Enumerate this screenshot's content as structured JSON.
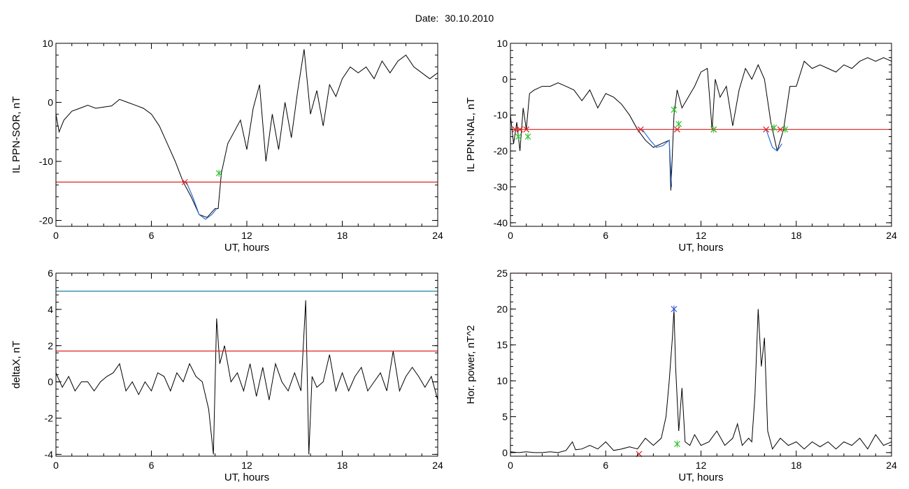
{
  "header": {
    "date_label": "Date:",
    "date_value": "30.10.2010"
  },
  "colors": {
    "trace": "#000000",
    "threshold": "#e02020",
    "limit": "#1f7f9f",
    "segment": "#2a6fd6",
    "green_marker": "#30c030",
    "blue_marker": "#3050d0"
  },
  "chart_data": [
    {
      "type": "line",
      "id": "p1",
      "xlabel": "UT, hours",
      "ylabel": "IL PPN-SOR, nT",
      "xlim": [
        0,
        24
      ],
      "ylim": [
        -21,
        10
      ],
      "xticks": [
        0,
        6,
        12,
        18,
        24
      ],
      "yticks": [
        -20,
        -10,
        0,
        10
      ],
      "series": [
        {
          "color": "trace",
          "x": [
            0,
            0.2,
            0.5,
            1,
            1.5,
            2,
            2.5,
            3,
            3.5,
            4,
            4.5,
            5,
            5.5,
            6,
            6.5,
            7,
            7.5,
            8,
            8.5,
            9,
            9.5,
            10,
            10.2,
            10.4,
            10.8,
            11.2,
            11.6,
            12,
            12.4,
            12.8,
            13.2,
            13.6,
            14,
            14.4,
            14.8,
            15.2,
            15.6,
            16,
            16.4,
            16.8,
            17.2,
            17.6,
            18,
            18.5,
            19,
            19.5,
            20,
            20.5,
            21,
            21.5,
            22,
            22.5,
            23,
            23.5,
            24
          ],
          "y": [
            -2,
            -5,
            -3,
            -1.5,
            -1,
            -0.5,
            -1,
            -0.8,
            -0.6,
            0.5,
            0,
            -0.5,
            -1,
            -2,
            -4,
            -7,
            -10,
            -13.5,
            -16,
            -19,
            -19.5,
            -18,
            -18,
            -12,
            -7,
            -5,
            -3,
            -8,
            -1,
            3,
            -10,
            -2,
            -8,
            0,
            -6,
            2,
            9,
            -2,
            2,
            -4,
            3,
            1,
            4,
            6,
            5,
            6,
            4,
            7,
            5,
            7,
            8,
            6,
            5,
            4,
            5
          ]
        },
        {
          "color": "segment",
          "x": [
            8.2,
            8.6,
            9,
            9.4,
            9.8,
            10.1
          ],
          "y": [
            -13.5,
            -16,
            -19,
            -19.8,
            -19,
            -18
          ]
        },
        {
          "color": "threshold",
          "x": [
            0,
            24
          ],
          "y": [
            -13.5,
            -13.5
          ]
        }
      ],
      "markers": [
        {
          "x": 8.1,
          "y": -13.5,
          "color": "threshold"
        },
        {
          "x": 10.25,
          "y": -12,
          "color": "green_marker"
        }
      ]
    },
    {
      "type": "line",
      "id": "p2",
      "xlabel": "UT, hours",
      "ylabel": "IL PPN-NAL, nT",
      "xlim": [
        0,
        24
      ],
      "ylim": [
        -41,
        10
      ],
      "xticks": [
        0,
        6,
        12,
        18,
        24
      ],
      "yticks": [
        -40,
        -30,
        -20,
        -10,
        0,
        10
      ],
      "series": [
        {
          "color": "trace",
          "x": [
            0,
            0.2,
            0.4,
            0.6,
            0.8,
            1,
            1.2,
            1.5,
            2,
            2.5,
            3,
            3.5,
            4,
            4.5,
            5,
            5.5,
            6,
            6.5,
            7,
            7.5,
            8,
            8.5,
            9,
            9.5,
            10,
            10.1,
            10.3,
            10.5,
            10.8,
            11.2,
            11.6,
            12,
            12.4,
            12.7,
            12.9,
            13.2,
            13.6,
            14,
            14.4,
            14.8,
            15.2,
            15.6,
            16,
            16.4,
            16.8,
            17.2,
            17.6,
            18,
            18.5,
            19,
            19.5,
            20,
            20.5,
            21,
            21.5,
            22,
            22.5,
            23,
            23.5,
            24
          ],
          "y": [
            -10,
            -18,
            -12,
            -20,
            -8,
            -14,
            -4,
            -3,
            -2,
            -2,
            -1,
            -2,
            -3,
            -6,
            -3,
            -8,
            -4,
            -5,
            -7,
            -10,
            -14,
            -17,
            -19,
            -18,
            -17,
            -31,
            -10,
            -3,
            -8,
            -5,
            -2,
            2,
            3,
            -14,
            0,
            -5,
            -2,
            -13,
            -3,
            3,
            0,
            4,
            0,
            -12,
            -20,
            -14,
            -2,
            -2,
            5,
            3,
            4,
            3,
            2,
            4,
            3,
            5,
            6,
            5,
            6,
            5
          ]
        },
        {
          "color": "segment",
          "x": [
            8.3,
            8.8,
            9.2,
            9.6,
            10,
            10.15
          ],
          "y": [
            -14,
            -17,
            -19,
            -18.5,
            -17,
            -30
          ]
        },
        {
          "color": "segment",
          "x": [
            16.1,
            16.5,
            16.8,
            17.1
          ],
          "y": [
            -14,
            -19,
            -20,
            -18
          ]
        },
        {
          "color": "threshold",
          "x": [
            0,
            24
          ],
          "y": [
            -14,
            -14
          ]
        }
      ],
      "markers": [
        {
          "x": 0.3,
          "y": -14,
          "color": "threshold"
        },
        {
          "x": 0.6,
          "y": -14,
          "color": "threshold"
        },
        {
          "x": 1,
          "y": -14,
          "color": "threshold"
        },
        {
          "x": 0.5,
          "y": -16,
          "color": "green_marker"
        },
        {
          "x": 1.1,
          "y": -16,
          "color": "green_marker"
        },
        {
          "x": 8.2,
          "y": -14,
          "color": "threshold"
        },
        {
          "x": 10.5,
          "y": -14,
          "color": "threshold"
        },
        {
          "x": 10.3,
          "y": -8.5,
          "color": "green_marker"
        },
        {
          "x": 10.6,
          "y": -12.5,
          "color": "green_marker"
        },
        {
          "x": 12.8,
          "y": -14,
          "color": "threshold"
        },
        {
          "x": 12.8,
          "y": -14,
          "color": "green_marker"
        },
        {
          "x": 16.1,
          "y": -14,
          "color": "threshold"
        },
        {
          "x": 16.6,
          "y": -13.5,
          "color": "green_marker"
        },
        {
          "x": 17.0,
          "y": -14,
          "color": "threshold"
        },
        {
          "x": 17.3,
          "y": -14,
          "color": "green_marker"
        }
      ]
    },
    {
      "type": "line",
      "id": "p3",
      "xlabel": "UT, hours",
      "ylabel": "deltaX, nT",
      "xlim": [
        0,
        24
      ],
      "ylim": [
        -4.1,
        6
      ],
      "xticks": [
        0,
        6,
        12,
        18,
        24
      ],
      "yticks": [
        -4,
        -2,
        0,
        2,
        4,
        6
      ],
      "series": [
        {
          "color": "trace",
          "x": [
            0,
            0.4,
            0.8,
            1.2,
            1.6,
            2,
            2.4,
            2.8,
            3.2,
            3.6,
            4,
            4.4,
            4.8,
            5.2,
            5.6,
            6,
            6.4,
            6.8,
            7.2,
            7.6,
            8,
            8.4,
            8.8,
            9.2,
            9.6,
            9.9,
            10.1,
            10.3,
            10.6,
            11,
            11.4,
            11.8,
            12.2,
            12.6,
            13,
            13.4,
            13.8,
            14.2,
            14.6,
            15,
            15.4,
            15.7,
            15.9,
            16.1,
            16.4,
            16.8,
            17.2,
            17.6,
            18,
            18.4,
            18.8,
            19.2,
            19.6,
            20,
            20.4,
            20.8,
            21.2,
            21.6,
            22,
            22.4,
            22.8,
            23.2,
            23.6,
            24
          ],
          "y": [
            0.5,
            -0.3,
            0.3,
            -0.5,
            0,
            0,
            -0.5,
            0,
            0.3,
            0.5,
            1,
            -0.5,
            0,
            -0.7,
            0,
            -0.5,
            0.5,
            0.3,
            -0.5,
            0.5,
            0,
            1,
            0.3,
            0,
            -1.5,
            -4,
            3.5,
            1,
            2,
            0,
            0.5,
            -0.5,
            1,
            -0.8,
            0.8,
            -1,
            1,
            0,
            -0.5,
            0.5,
            -0.5,
            4.5,
            -4,
            0.3,
            -0.3,
            0,
            1.5,
            -0.5,
            0.5,
            -0.5,
            0.3,
            0.8,
            -0.5,
            0,
            0.5,
            -0.5,
            1.7,
            -0.5,
            0.3,
            0.8,
            0.3,
            -0.3,
            0.3,
            -1
          ]
        },
        {
          "color": "limit",
          "x": [
            0,
            24
          ],
          "y": [
            5,
            5
          ]
        },
        {
          "color": "threshold",
          "x": [
            0,
            24
          ],
          "y": [
            1.7,
            1.7
          ]
        }
      ],
      "markers": []
    },
    {
      "type": "line",
      "id": "p4",
      "xlabel": "UT, hours",
      "ylabel": "Hor. power, nT^2",
      "xlim": [
        0,
        24
      ],
      "ylim": [
        -0.5,
        25
      ],
      "xticks": [
        0,
        6,
        12,
        18,
        24
      ],
      "yticks": [
        0,
        5,
        10,
        15,
        20,
        25
      ],
      "series": [
        {
          "color": "trace",
          "x": [
            0,
            0.5,
            1,
            1.5,
            2,
            2.5,
            3,
            3.5,
            3.9,
            4.1,
            4.5,
            5,
            5.5,
            6,
            6.5,
            7,
            7.5,
            8,
            8.5,
            9,
            9.5,
            9.8,
            10.0,
            10.2,
            10.3,
            10.4,
            10.6,
            10.8,
            11.0,
            11.3,
            11.6,
            12,
            12.5,
            13,
            13.5,
            14,
            14.3,
            14.6,
            15,
            15.2,
            15.4,
            15.6,
            15.8,
            16.0,
            16.2,
            16.5,
            17,
            17.5,
            18,
            18.5,
            19,
            19.5,
            20,
            20.5,
            21,
            21.5,
            22,
            22.5,
            23,
            23.5,
            24
          ],
          "y": [
            0.1,
            0,
            0.1,
            0,
            0,
            0.1,
            0,
            0.3,
            1.5,
            0.4,
            0.5,
            1,
            0.5,
            1.5,
            0.3,
            0.5,
            0.8,
            0.5,
            2,
            1,
            2,
            5,
            10,
            16,
            20,
            12,
            3,
            9,
            1.5,
            1,
            2.5,
            1,
            1.5,
            3,
            1,
            2,
            4,
            1,
            2,
            1.5,
            8,
            20,
            12,
            16,
            3,
            0.5,
            2,
            1,
            1.5,
            0.5,
            1.5,
            0.8,
            1.5,
            0.5,
            1.5,
            1,
            2,
            0.5,
            2.5,
            1,
            1.5
          ]
        },
        {
          "color": "threshold",
          "x": [
            0,
            24
          ],
          "y": [
            25,
            25
          ]
        }
      ],
      "markers": [
        {
          "x": 10.3,
          "y": 20,
          "color": "blue_marker"
        },
        {
          "x": 10.5,
          "y": 1.2,
          "color": "green_marker"
        },
        {
          "x": 8.1,
          "y": -0.2,
          "color": "threshold"
        }
      ]
    }
  ]
}
